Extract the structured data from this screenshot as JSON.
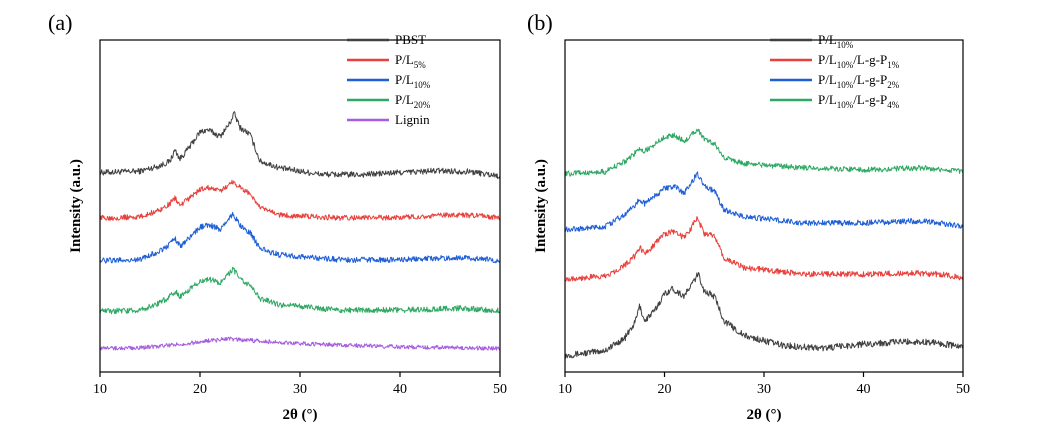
{
  "chart_data": [
    {
      "type": "line",
      "panel_label": "(a)",
      "xlabel": "2θ (°)",
      "ylabel": "Intensity (a.u.)",
      "xlim": [
        10,
        50
      ],
      "xticks": [
        10,
        20,
        30,
        40,
        50
      ],
      "y_tick_labels": false,
      "grid": false,
      "legend_position": "top-right",
      "series": [
        {
          "name": "PBST",
          "name_main": "P",
          "name_rest": "BST",
          "name_sub": "",
          "name_suffix": "",
          "color": "#404040",
          "points": [
            [
              10,
              0.3
            ],
            [
              14,
              0.33
            ],
            [
              16,
              0.45
            ],
            [
              17,
              0.55
            ],
            [
              17.5,
              0.8
            ],
            [
              18,
              0.6
            ],
            [
              19,
              0.88
            ],
            [
              20,
              1.2
            ],
            [
              20.8,
              1.25
            ],
            [
              22,
              1.1
            ],
            [
              23,
              1.4
            ],
            [
              23.4,
              1.62
            ],
            [
              24,
              1.3
            ],
            [
              25,
              1.15
            ],
            [
              26,
              0.55
            ],
            [
              28,
              0.4
            ],
            [
              32,
              0.26
            ],
            [
              36,
              0.25
            ],
            [
              40,
              0.3
            ],
            [
              44,
              0.34
            ],
            [
              47,
              0.32
            ],
            [
              50,
              0.22
            ]
          ]
        },
        {
          "name": "P/L5%",
          "name_main": "P/L",
          "name_rest": "",
          "name_sub": "5%",
          "name_suffix": "",
          "color": "#e8413c",
          "points": [
            [
              10,
              0.25
            ],
            [
              14,
              0.27
            ],
            [
              16,
              0.45
            ],
            [
              17,
              0.6
            ],
            [
              17.5,
              0.75
            ],
            [
              18,
              0.55
            ],
            [
              20,
              0.95
            ],
            [
              21,
              1.0
            ],
            [
              22,
              0.9
            ],
            [
              23.3,
              1.15
            ],
            [
              24,
              1.0
            ],
            [
              25,
              0.85
            ],
            [
              26,
              0.5
            ],
            [
              28,
              0.32
            ],
            [
              34,
              0.25
            ],
            [
              40,
              0.26
            ],
            [
              45,
              0.32
            ],
            [
              48,
              0.3
            ],
            [
              50,
              0.25
            ]
          ]
        },
        {
          "name": "P/L10%",
          "name_main": "P/L",
          "name_rest": "",
          "name_sub": "10%",
          "name_suffix": "",
          "color": "#1f5fd6",
          "points": [
            [
              10,
              0.22
            ],
            [
              14,
              0.24
            ],
            [
              16,
              0.45
            ],
            [
              17,
              0.6
            ],
            [
              17.5,
              0.75
            ],
            [
              18,
              0.55
            ],
            [
              20,
              1.0
            ],
            [
              21,
              1.05
            ],
            [
              22,
              0.95
            ],
            [
              23.3,
              1.3
            ],
            [
              24,
              1.05
            ],
            [
              25,
              0.88
            ],
            [
              26,
              0.5
            ],
            [
              28,
              0.35
            ],
            [
              34,
              0.24
            ],
            [
              40,
              0.24
            ],
            [
              46,
              0.3
            ],
            [
              50,
              0.22
            ]
          ]
        },
        {
          "name": "P/L20%",
          "name_main": "P/L",
          "name_rest": "",
          "name_sub": "20%",
          "name_suffix": "",
          "color": "#2fa863",
          "points": [
            [
              10,
              0.25
            ],
            [
              14,
              0.27
            ],
            [
              16,
              0.45
            ],
            [
              17,
              0.6
            ],
            [
              17.5,
              0.72
            ],
            [
              18,
              0.6
            ],
            [
              20,
              0.95
            ],
            [
              21,
              1.0
            ],
            [
              22,
              0.9
            ],
            [
              23.3,
              1.25
            ],
            [
              24,
              1.0
            ],
            [
              25,
              0.85
            ],
            [
              26,
              0.55
            ],
            [
              28,
              0.4
            ],
            [
              34,
              0.28
            ],
            [
              40,
              0.28
            ],
            [
              46,
              0.32
            ],
            [
              50,
              0.26
            ]
          ]
        },
        {
          "name": "Lignin",
          "name_main": "L",
          "name_rest": "ignin",
          "name_sub": "",
          "name_suffix": "",
          "color": "#a55ee0",
          "points": [
            [
              10,
              0.05
            ],
            [
              14,
              0.07
            ],
            [
              18,
              0.18
            ],
            [
              21,
              0.3
            ],
            [
              23,
              0.35
            ],
            [
              26,
              0.28
            ],
            [
              30,
              0.2
            ],
            [
              35,
              0.15
            ],
            [
              40,
              0.1
            ],
            [
              45,
              0.08
            ],
            [
              50,
              0.05
            ]
          ]
        }
      ]
    },
    {
      "type": "line",
      "panel_label": "(b)",
      "xlabel": "2θ (°)",
      "ylabel": "Intensity (a.u.)",
      "xlim": [
        10,
        50
      ],
      "xticks": [
        10,
        20,
        30,
        40,
        50
      ],
      "y_tick_labels": false,
      "grid": false,
      "legend_position": "top-right",
      "series": [
        {
          "name": "P/L10%",
          "name_main": "P/L",
          "name_rest": "",
          "name_sub": "10%",
          "name_suffix": "",
          "color": "#404040",
          "points": [
            [
              10,
              0.05
            ],
            [
              14,
              0.15
            ],
            [
              16,
              0.4
            ],
            [
              17,
              0.7
            ],
            [
              17.5,
              1.05
            ],
            [
              18,
              0.75
            ],
            [
              19,
              0.95
            ],
            [
              20,
              1.3
            ],
            [
              20.8,
              1.4
            ],
            [
              22,
              1.25
            ],
            [
              23.4,
              1.7
            ],
            [
              24,
              1.35
            ],
            [
              25,
              1.25
            ],
            [
              26,
              0.75
            ],
            [
              28,
              0.45
            ],
            [
              32,
              0.25
            ],
            [
              36,
              0.2
            ],
            [
              40,
              0.28
            ],
            [
              44,
              0.33
            ],
            [
              47,
              0.32
            ],
            [
              50,
              0.22
            ]
          ]
        },
        {
          "name": "P/L10%/L-g-P1%",
          "name_main": "P/L",
          "name_rest": "",
          "name_sub": "10%",
          "name_suffix": "/L-g-P",
          "name_sub2": "1%",
          "color": "#e8413c",
          "points": [
            [
              10,
              0.25
            ],
            [
              14,
              0.3
            ],
            [
              16,
              0.55
            ],
            [
              17,
              0.75
            ],
            [
              17.5,
              0.95
            ],
            [
              18,
              0.8
            ],
            [
              20,
              1.25
            ],
            [
              21,
              1.3
            ],
            [
              22,
              1.15
            ],
            [
              23.3,
              1.6
            ],
            [
              24,
              1.25
            ],
            [
              25,
              1.2
            ],
            [
              26,
              0.7
            ],
            [
              28,
              0.5
            ],
            [
              34,
              0.35
            ],
            [
              40,
              0.35
            ],
            [
              45,
              0.37
            ],
            [
              48,
              0.35
            ],
            [
              50,
              0.25
            ]
          ]
        },
        {
          "name": "P/L10%/L-g-P2%",
          "name_main": "P/L",
          "name_rest": "",
          "name_sub": "10%",
          "name_suffix": "/L-g-P",
          "name_sub2": "2%",
          "color": "#1f5fd6",
          "points": [
            [
              10,
              0.25
            ],
            [
              14,
              0.3
            ],
            [
              16,
              0.6
            ],
            [
              17,
              0.8
            ],
            [
              17.5,
              0.95
            ],
            [
              18,
              0.85
            ],
            [
              20,
              1.2
            ],
            [
              21,
              1.25
            ],
            [
              22,
              1.1
            ],
            [
              23.3,
              1.55
            ],
            [
              24,
              1.25
            ],
            [
              25,
              1.15
            ],
            [
              26,
              0.7
            ],
            [
              28,
              0.55
            ],
            [
              34,
              0.4
            ],
            [
              40,
              0.4
            ],
            [
              46,
              0.45
            ],
            [
              50,
              0.32
            ]
          ]
        },
        {
          "name": "P/L10%/L-g-P4%",
          "name_main": "P/L",
          "name_rest": "",
          "name_sub": "10%",
          "name_suffix": "/L-g-P",
          "name_sub2": "4%",
          "color": "#2fa863",
          "points": [
            [
              10,
              0.4
            ],
            [
              14,
              0.45
            ],
            [
              16,
              0.7
            ],
            [
              17,
              0.9
            ],
            [
              17.5,
              1.05
            ],
            [
              18,
              0.95
            ],
            [
              20,
              1.3
            ],
            [
              21,
              1.35
            ],
            [
              22,
              1.2
            ],
            [
              23.3,
              1.5
            ],
            [
              24,
              1.25
            ],
            [
              25,
              1.15
            ],
            [
              26,
              0.8
            ],
            [
              28,
              0.65
            ],
            [
              34,
              0.55
            ],
            [
              40,
              0.5
            ],
            [
              46,
              0.55
            ],
            [
              50,
              0.45
            ]
          ]
        }
      ]
    }
  ]
}
